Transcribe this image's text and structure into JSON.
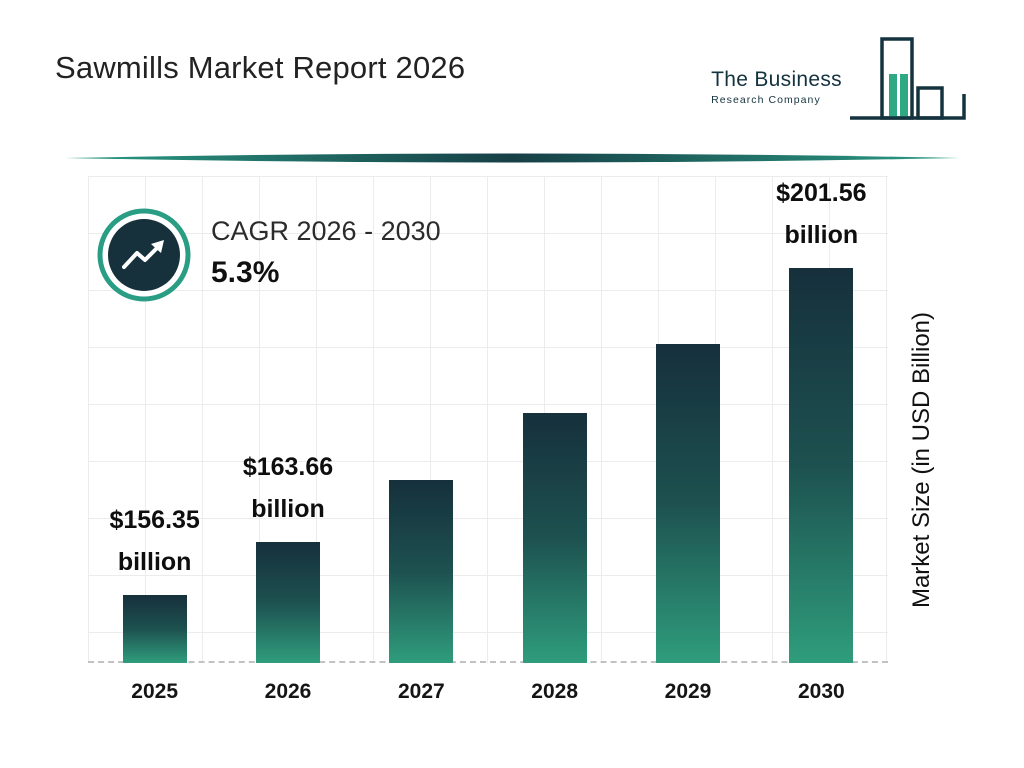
{
  "header": {
    "title": "Sawmills Market Report 2026",
    "logo": {
      "name1": "The Business",
      "name2": "Research Company"
    }
  },
  "cagr_badge": {
    "icon": "trend-up-icon",
    "label": "CAGR 2026 - 2030",
    "value": "5.3%"
  },
  "chart_data": {
    "type": "bar",
    "title": "Sawmills Market Report 2026",
    "categories": [
      "2025",
      "2026",
      "2027",
      "2028",
      "2029",
      "2030"
    ],
    "series": [
      {
        "name": "Market Size (in USD Billion)",
        "values": [
          156.35,
          163.66,
          172.33,
          181.47,
          191.08,
          201.56
        ]
      }
    ],
    "value_labels": [
      {
        "index": 0,
        "line1": "$156.35",
        "line2": "billion"
      },
      {
        "index": 1,
        "line1": "$163.66",
        "line2": "billion"
      },
      {
        "index": 5,
        "line1": "$201.56",
        "line2": "billion"
      }
    ],
    "xlabel": "",
    "ylabel": "Market Size (in USD Billion)",
    "ylim": [
      147,
      205
    ],
    "grid": true,
    "legend": false,
    "baseline_style": "dashed",
    "colors": {
      "bar_gradient_top": "#16303c",
      "bar_gradient_mid": "#1d5150",
      "bar_gradient_bottom": "#2f9d7c",
      "grid_line": "#ececec",
      "baseline_dash": "#c2c2c2",
      "accent_teal": "#2a9d85",
      "badge_fill": "#16313c",
      "logo_outline": "#14333f",
      "logo_fill": "#2fa884",
      "text": "#1c1c1c"
    }
  },
  "icons": {
    "badge": "trend-up-icon",
    "logo": "bar-chart-logo-icon"
  }
}
